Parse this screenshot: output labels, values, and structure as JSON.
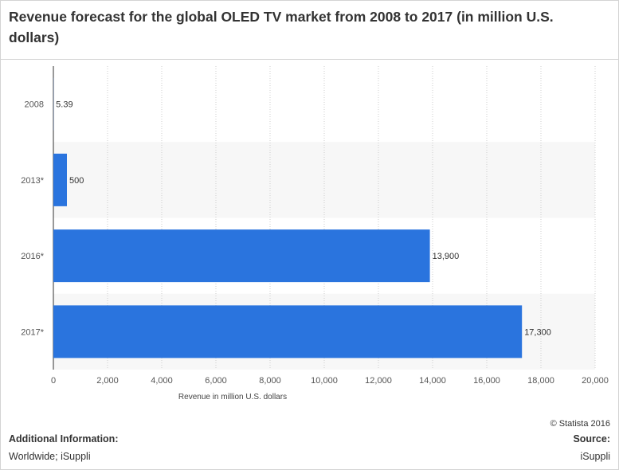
{
  "title": "Revenue forecast for the global OLED TV market from 2008 to 2017 (in million U.S. dollars)",
  "credit": "© Statista 2016",
  "footer": {
    "additional_info_label": "Additional Information:",
    "additional_info_text": "Worldwide; iSuppli",
    "source_label": "Source:",
    "source_text": "iSuppli"
  },
  "colors": {
    "bar": "#2a74de",
    "band": "#f7f7f7",
    "grid": "#cccccc"
  },
  "chart_data": {
    "type": "bar",
    "orientation": "horizontal",
    "categories": [
      "2008",
      "2013*",
      "2016*",
      "2017*"
    ],
    "values": [
      5.39,
      500,
      13900,
      17300
    ],
    "value_labels": [
      "5.39",
      "500",
      "13,900",
      "17,300"
    ],
    "xlabel": "Revenue in million U.S. dollars",
    "ylabel": "",
    "xlim": [
      0,
      20000
    ],
    "ticks": [
      0,
      2000,
      4000,
      6000,
      8000,
      10000,
      12000,
      14000,
      16000,
      18000,
      20000
    ],
    "tick_labels": [
      "0",
      "2,000",
      "4,000",
      "6,000",
      "8,000",
      "10,000",
      "12,000",
      "14,000",
      "16,000",
      "18,000",
      "20,000"
    ],
    "grid": true,
    "legend": "none"
  }
}
